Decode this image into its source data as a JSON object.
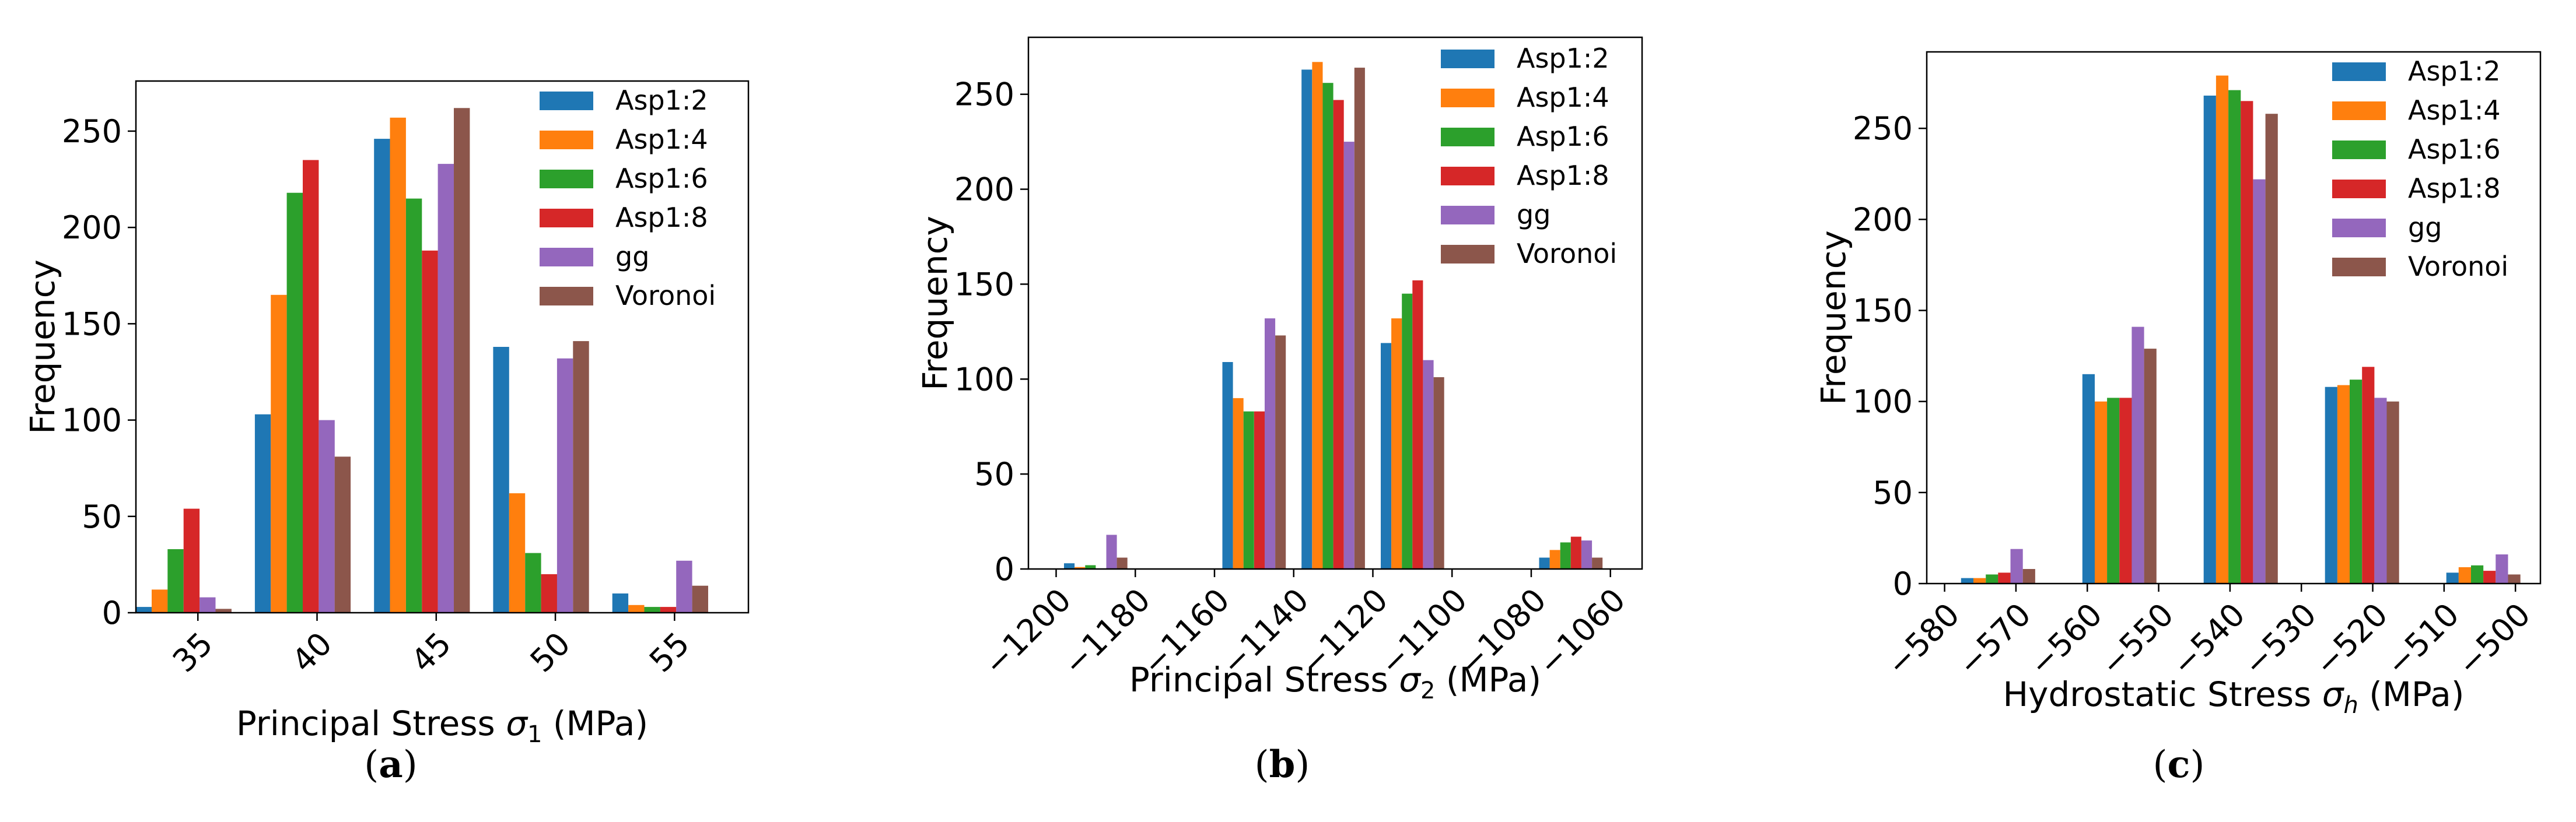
{
  "colors": {
    "Asp1:2": "#1f77b4",
    "Asp1:4": "#ff7f0e",
    "Asp1:6": "#2ca02c",
    "Asp1:8": "#d62728",
    "gg": "#9467bd",
    "Voronoi": "#8c564b"
  },
  "chart_data": [
    {
      "type": "bar",
      "panel": "a",
      "panel_label": "(a)",
      "xlabel_main": "Principal Stress ",
      "xlabel_symbol": "σ",
      "xlabel_sub": "1",
      "xlabel_unit": " (MPa)",
      "ylabel": "Frequency",
      "xlim": [
        32.4,
        58.1
      ],
      "ylim": [
        0,
        276
      ],
      "xticks": [
        35,
        40,
        45,
        50,
        55
      ],
      "xtick_labels": [
        "35",
        "40",
        "45",
        "50",
        "55"
      ],
      "yticks": [
        0,
        50,
        100,
        150,
        200,
        250
      ],
      "ytick_labels": [
        "0",
        "50",
        "100",
        "150",
        "200",
        "250"
      ],
      "bin_centers": [
        34.4,
        39.4,
        44.4,
        49.4,
        54.4
      ],
      "bar_width": 0.67,
      "legend": [
        "Asp1:2",
        "Asp1:4",
        "Asp1:6",
        "Asp1:8",
        "gg",
        "Voronoi"
      ],
      "series": [
        {
          "name": "Asp1:2",
          "values": [
            3,
            103,
            246,
            138,
            10
          ]
        },
        {
          "name": "Asp1:4",
          "values": [
            12,
            165,
            257,
            62,
            4
          ]
        },
        {
          "name": "Asp1:6",
          "values": [
            33,
            218,
            215,
            31,
            3
          ]
        },
        {
          "name": "Asp1:8",
          "values": [
            54,
            235,
            188,
            20,
            3
          ]
        },
        {
          "name": "gg",
          "values": [
            8,
            100,
            233,
            132,
            27
          ]
        },
        {
          "name": "Voronoi",
          "values": [
            2,
            81,
            262,
            141,
            14
          ]
        }
      ]
    },
    {
      "type": "bar",
      "panel": "b",
      "panel_label": "(b)",
      "xlabel_main": "Principal Stress ",
      "xlabel_symbol": "σ",
      "xlabel_sub": "2",
      "xlabel_unit": " (MPa)",
      "ylabel": "Frequency",
      "xlim": [
        -1207,
        -1052
      ],
      "ylim": [
        0,
        280
      ],
      "xticks": [
        -1200,
        -1180,
        -1160,
        -1140,
        -1120,
        -1100,
        -1080,
        -1060
      ],
      "xtick_labels": [
        "−1200",
        "−1180",
        "−1160",
        "−1140",
        "−1120",
        "−1100",
        "−1080",
        "−1060"
      ],
      "yticks": [
        0,
        50,
        100,
        150,
        200,
        250
      ],
      "ytick_labels": [
        "0",
        "50",
        "100",
        "150",
        "200",
        "250"
      ],
      "bin_centers": [
        -1190,
        -1150,
        -1130,
        -1110,
        -1070
      ],
      "bar_width": 2.67,
      "legend": [
        "Asp1:2",
        "Asp1:4",
        "Asp1:6",
        "Asp1:8",
        "gg",
        "Voronoi"
      ],
      "series": [
        {
          "name": "Asp1:2",
          "values": [
            3,
            109,
            263,
            119,
            6
          ]
        },
        {
          "name": "Asp1:4",
          "values": [
            1,
            90,
            267,
            132,
            10
          ]
        },
        {
          "name": "Asp1:6",
          "values": [
            2,
            83,
            256,
            145,
            14
          ]
        },
        {
          "name": "Asp1:8",
          "values": [
            0,
            83,
            247,
            152,
            17
          ]
        },
        {
          "name": "gg",
          "values": [
            18,
            132,
            225,
            110,
            15
          ]
        },
        {
          "name": "Voronoi",
          "values": [
            6,
            123,
            264,
            101,
            6
          ]
        }
      ]
    },
    {
      "type": "bar",
      "panel": "c",
      "panel_label": "(c)",
      "xlabel_main": "Hydrostatic Stress ",
      "xlabel_symbol": "σ",
      "xlabel_sub": "h",
      "xlabel_unit": " (MPa)",
      "ylabel": "Frequency",
      "xlim": [
        -582.5,
        -496.5
      ],
      "ylim": [
        0,
        292
      ],
      "xticks": [
        -580,
        -570,
        -560,
        -550,
        -540,
        -530,
        -520,
        -510,
        -500
      ],
      "xtick_labels": [
        "−580",
        "−570",
        "−560",
        "−550",
        "−540",
        "−530",
        "−520",
        "−510",
        "−500"
      ],
      "yticks": [
        0,
        50,
        100,
        150,
        200,
        250
      ],
      "ytick_labels": [
        "0",
        "50",
        "100",
        "150",
        "200",
        "250"
      ],
      "bin_centers": [
        -572.5,
        -555.5,
        -538.5,
        -521.5,
        -504.5
      ],
      "bar_width": 1.73,
      "legend": [
        "Asp1:2",
        "Asp1:4",
        "Asp1:6",
        "Asp1:8",
        "gg",
        "Voronoi"
      ],
      "series": [
        {
          "name": "Asp1:2",
          "values": [
            3,
            115,
            268,
            108,
            6
          ]
        },
        {
          "name": "Asp1:4",
          "values": [
            3,
            100,
            279,
            109,
            9
          ]
        },
        {
          "name": "Asp1:6",
          "values": [
            5,
            102,
            271,
            112,
            10
          ]
        },
        {
          "name": "Asp1:8",
          "values": [
            6,
            102,
            265,
            119,
            7
          ]
        },
        {
          "name": "gg",
          "values": [
            19,
            141,
            222,
            102,
            16
          ]
        },
        {
          "name": "Voronoi",
          "values": [
            8,
            129,
            258,
            100,
            5
          ]
        }
      ]
    }
  ]
}
